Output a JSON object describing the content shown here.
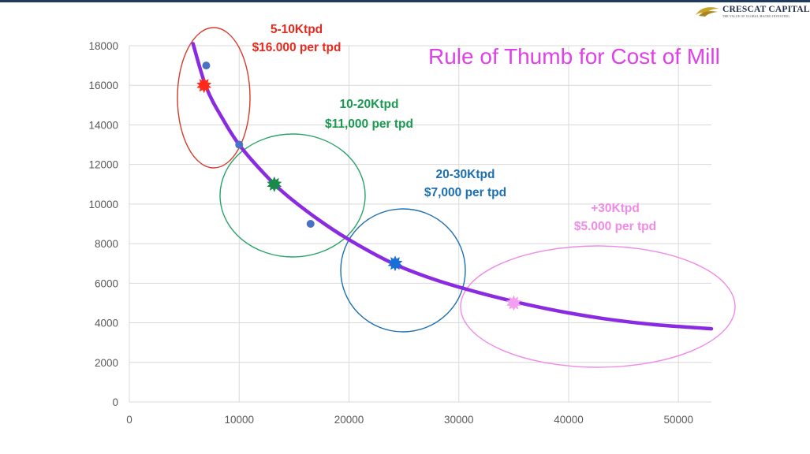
{
  "brand": {
    "name": "CRESCAT CAPITAL",
    "tagline": "THE VALUE OF GLOBAL MACRO INVESTING"
  },
  "chart_data": {
    "type": "scatter",
    "title": "Rule of Thumb for Cost of Mill",
    "xlabel": "",
    "ylabel": "",
    "xlim": [
      0,
      53000
    ],
    "ylim": [
      0,
      18000
    ],
    "x_ticks": [
      0,
      10000,
      20000,
      30000,
      40000,
      50000
    ],
    "y_ticks": [
      0,
      2000,
      4000,
      6000,
      8000,
      10000,
      12000,
      14000,
      16000,
      18000
    ],
    "grid": true,
    "points": [
      {
        "x": 7000,
        "y": 17000
      },
      {
        "x": 10000,
        "y": 13000
      },
      {
        "x": 16500,
        "y": 9000
      }
    ],
    "trendline": {
      "color": "#8a2be2",
      "points": [
        [
          5800,
          18100
        ],
        [
          7000,
          15900
        ],
        [
          8500,
          14300
        ],
        [
          10000,
          13000
        ],
        [
          12000,
          11700
        ],
        [
          14000,
          10600
        ],
        [
          17000,
          9300
        ],
        [
          20000,
          8200
        ],
        [
          24000,
          7000
        ],
        [
          28000,
          6150
        ],
        [
          32000,
          5500
        ],
        [
          36000,
          4950
        ],
        [
          40000,
          4500
        ],
        [
          44000,
          4150
        ],
        [
          48000,
          3900
        ],
        [
          53000,
          3700
        ]
      ]
    },
    "highlights": [
      {
        "x": 6800,
        "y": 16000,
        "color": "#ff2a1a"
      },
      {
        "x": 13200,
        "y": 11000,
        "color": "#1a8a4a"
      },
      {
        "x": 24200,
        "y": 7000,
        "color": "#1a6fd6"
      },
      {
        "x": 35000,
        "y": 5000,
        "color": "#f4a0f0"
      }
    ],
    "annotations": [
      {
        "range": "5-10Ktpd",
        "cost": "$16.000 per tpd",
        "color": "#e8281c"
      },
      {
        "range": "10-20Ktpd",
        "cost": "$11,000 per tpd",
        "color": "#1a9a50"
      },
      {
        "range": "20-30Ktpd",
        "cost": "$7,000 per tpd",
        "color": "#1c6fb0"
      },
      {
        "range": "+30Ktpd",
        "cost": "$5.000 per tpd",
        "color": "#f08ae8"
      }
    ],
    "ellipse_colors": [
      "#d63a2a",
      "#2aa36a",
      "#1c6fb0",
      "#f08ae8"
    ],
    "colors": {
      "point": "#4a72c4",
      "title": "#e040e8",
      "grid": "#d9d9d9",
      "tick": "#595959"
    }
  }
}
